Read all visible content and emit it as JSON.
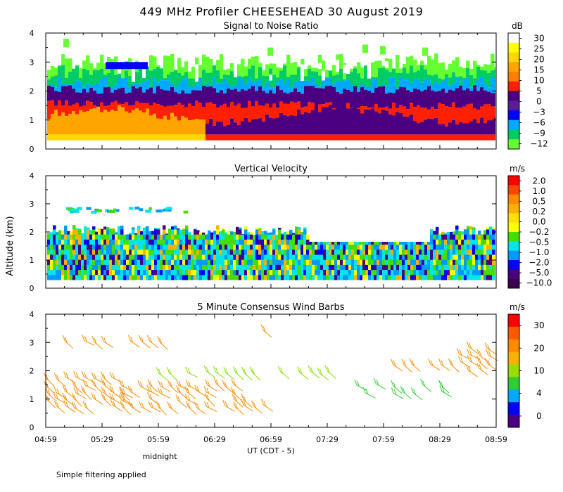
{
  "title": "449 MHz Profiler CHEESEHEAD 30 August 2019",
  "ylabel": "Altitude (km)",
  "xlabel": "UT  (CDT - 5)",
  "midnight_label": "midnight",
  "footnote": "Simple filtering applied",
  "chart_data": [
    {
      "type": "heatmap",
      "title": "Signal to Noise Ratio",
      "x_ticks": [
        "04:59",
        "05:29",
        "05:59",
        "06:29",
        "06:59",
        "07:29",
        "07:59",
        "08:29",
        "08:59"
      ],
      "y_ticks": [
        "0",
        "1",
        "2",
        "3",
        "4"
      ],
      "ylim": [
        0,
        4
      ],
      "colorbar": {
        "unit": "dB",
        "labels": [
          "30",
          "25",
          "20",
          "15",
          "10",
          "5",
          "0",
          "−3",
          "−6",
          "−9",
          "−12"
        ],
        "colors": [
          "#ffffff",
          "#ffff00",
          "#ffd700",
          "#ffa500",
          "#ff7f00",
          "#ff2000",
          "#4b0082",
          "#5a1e96",
          "#0000ff",
          "#00aaff",
          "#00cc66",
          "#66ff33"
        ]
      },
      "layers": [
        {
          "level": "−12 to −9",
          "altitude_km": [
            2.3,
            3.2
          ],
          "color": "#66ff33"
        },
        {
          "level": "−6 to −3",
          "altitude_km": [
            2.0,
            2.7
          ],
          "color": "#00aaff"
        },
        {
          "level": "0 to 5",
          "altitude_km": [
            1.4,
            2.1
          ],
          "color": "#4b0082"
        },
        {
          "level": "10 to 15",
          "altitude_km": [
            0.3,
            1.6
          ],
          "color": "#ff2000"
        },
        {
          "level": "15 to 25",
          "altitude_km": [
            0.3,
            1.2
          ],
          "color": "#ffa500"
        }
      ]
    },
    {
      "type": "heatmap",
      "title": "Vertical Velocity",
      "x_ticks": [
        "04:59",
        "05:29",
        "05:59",
        "06:29",
        "06:59",
        "07:29",
        "07:59",
        "08:29",
        "08:59"
      ],
      "y_ticks": [
        "0",
        "1",
        "2",
        "3",
        "4"
      ],
      "ylim": [
        0,
        4
      ],
      "colorbar": {
        "unit": "m/s",
        "labels": [
          "2.0",
          "1.0",
          "0.5",
          "0.2",
          "0.0",
          "−0.2",
          "−0.5",
          "−1.0",
          "−2.0",
          "−5.0",
          "−10.0"
        ],
        "colors": [
          "#ff0000",
          "#ff4500",
          "#ff8c00",
          "#ffb000",
          "#ffe000",
          "#ffff00",
          "#44dd00",
          "#00e5e5",
          "#0099ff",
          "#0000ff",
          "#4b0082",
          "#3c0050"
        ]
      },
      "data_top_km": 2.2,
      "dominant_range_ms": [
        -1.0,
        0.2
      ]
    },
    {
      "type": "scatter",
      "title": "5 Minute Consensus Wind Barbs",
      "x_ticks": [
        "04:59",
        "05:29",
        "05:59",
        "06:29",
        "06:59",
        "07:29",
        "07:59",
        "08:29",
        "08:59"
      ],
      "y_ticks": [
        "0",
        "1",
        "2",
        "3",
        "4"
      ],
      "ylim": [
        0,
        4
      ],
      "colorbar": {
        "unit": "m/s",
        "labels": [
          "30",
          "20",
          "10",
          "4",
          "0"
        ],
        "colors": [
          "#ff0000",
          "#ff5a00",
          "#ff8c00",
          "#ffb000",
          "#99dd00",
          "#33cc33",
          "#00aaff",
          "#0000ff",
          "#4b0082"
        ]
      },
      "barb_groups": [
        {
          "x_min": [
            0,
            40
          ],
          "y_km": [
            0.7,
            1.9
          ],
          "speed_ms": 22,
          "color": "#ff8c00"
        },
        {
          "x_min": [
            0,
            30
          ],
          "y_km": [
            3.0,
            3.3
          ],
          "speed_ms": 22,
          "color": "#ff8c00"
        },
        {
          "x_min": [
            40,
            100
          ],
          "y_km": [
            0.7,
            1.6
          ],
          "speed_ms": 20,
          "color": "#ff8c00"
        },
        {
          "x_min": [
            45,
            60
          ],
          "y_km": [
            3.0,
            3.3
          ],
          "speed_ms": 22,
          "color": "#ff8c00"
        },
        {
          "x_min": [
            105,
            115
          ],
          "y_km": [
            3.4,
            3.6
          ],
          "speed_ms": 18,
          "color": "#ff8c00"
        },
        {
          "x_min": [
            105,
            115
          ],
          "y_km": [
            0.7,
            1.1
          ],
          "speed_ms": 18,
          "color": "#ff8c00"
        },
        {
          "x_min": [
            60,
            165
          ],
          "y_km": [
            1.9,
            2.1
          ],
          "speed_ms": 10,
          "color": "#88dd00"
        },
        {
          "x_min": [
            165,
            210
          ],
          "y_km": [
            1.2,
            1.7
          ],
          "speed_ms": 8,
          "color": "#33cc33"
        },
        {
          "x_min": [
            185,
            215
          ],
          "y_km": [
            2.2,
            2.5
          ],
          "speed_ms": 20,
          "color": "#ff8c00"
        },
        {
          "x_min": [
            220,
            238
          ],
          "y_km": [
            2.0,
            2.9
          ],
          "speed_ms": 20,
          "color": "#ff8c00"
        }
      ]
    }
  ]
}
